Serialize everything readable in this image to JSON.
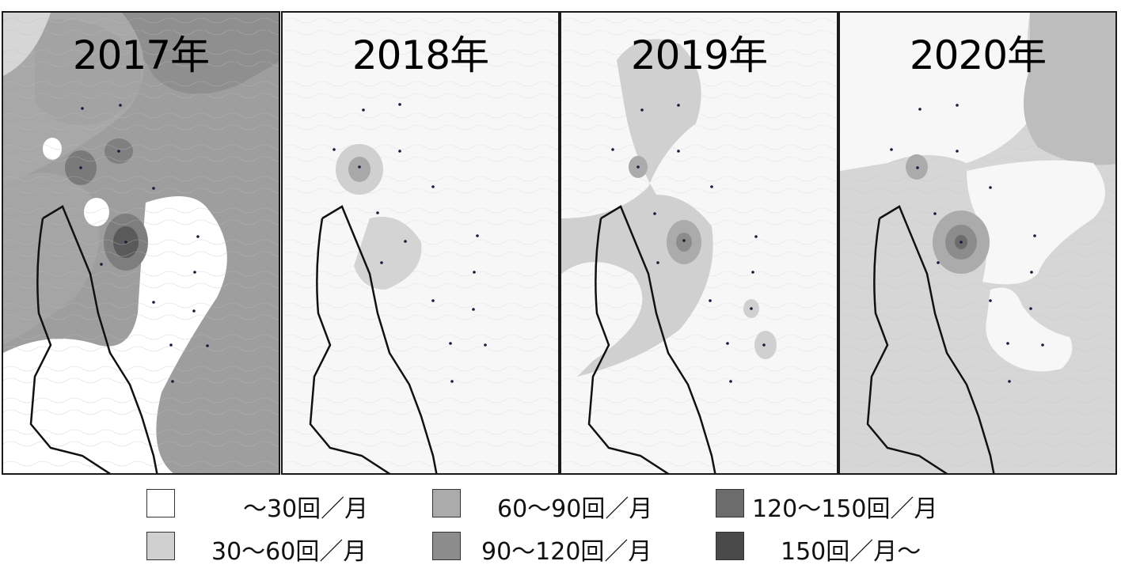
{
  "panels": [
    {
      "year": "2017年"
    },
    {
      "year": "2018年"
    },
    {
      "year": "2019年"
    },
    {
      "year": "2020年"
    }
  ],
  "legend": {
    "items": [
      {
        "label": "～30回／月",
        "color": "#ffffff"
      },
      {
        "label": "30～60回／月",
        "color": "#d0d0d0"
      },
      {
        "label": "60～90回／月",
        "color": "#ababab"
      },
      {
        "label": "90～120回／月",
        "color": "#8c8c8c"
      },
      {
        "label": "120～150回／月",
        "color": "#6c6c6c"
      },
      {
        "label": "150回／月～",
        "color": "#4a4a4a"
      }
    ]
  }
}
